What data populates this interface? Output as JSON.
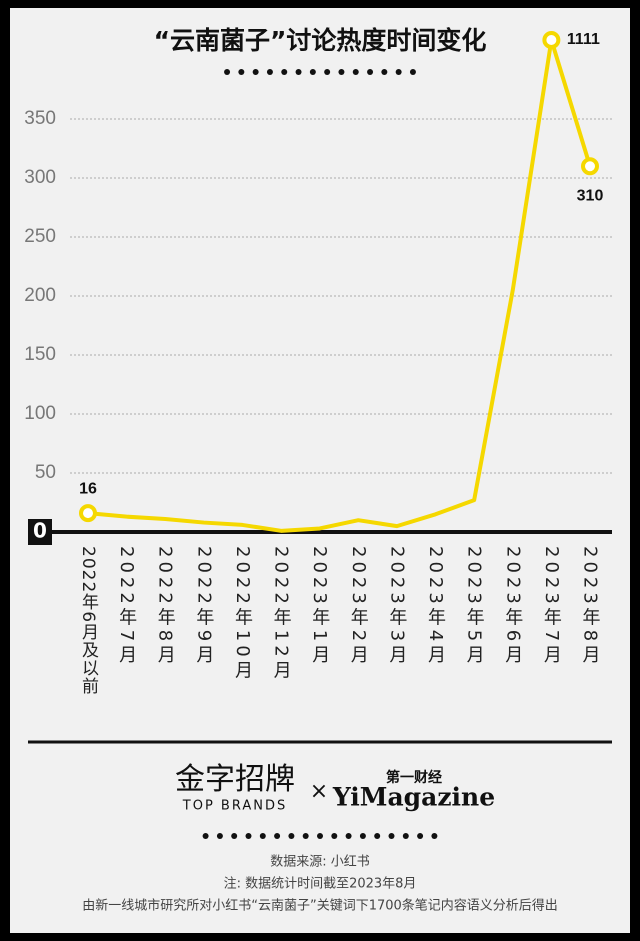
{
  "chart_data": {
    "type": "line",
    "title": "“云南菌子”讨论热度时间变化",
    "categories": [
      "2022年6月及以前",
      "2022年7月",
      "2022年8月",
      "2022年9月",
      "2022年10月",
      "2022年12月",
      "2023年1月",
      "2023年2月",
      "2023年3月",
      "2023年4月",
      "2023年5月",
      "2023年6月",
      "2023年7月",
      "2023年8月"
    ],
    "values": [
      16,
      13,
      11,
      8,
      6,
      1,
      3,
      10,
      5,
      15,
      27,
      205,
      1111,
      310
    ],
    "value_labels": [
      "16",
      null,
      null,
      null,
      null,
      null,
      null,
      null,
      null,
      null,
      null,
      null,
      "1111",
      "310"
    ],
    "color": "#f5d800",
    "ylim": [
      0,
      417
    ],
    "yticks": [
      0,
      50,
      100,
      150,
      200,
      250,
      300,
      350
    ],
    "grid": true,
    "footer": {
      "brand1": "金字招牌",
      "brand1_sub": "TOP BRANDS",
      "times": "×",
      "brand2_top": "第一财经",
      "brand2": "YiMagazine",
      "source": "数据来源: 小红书",
      "note": "注: 数据统计时间截至2023年8月",
      "method": "由新一线城市研究所对小红书“云南菌子”关键词下1700条笔记内容语义分析后得出"
    }
  }
}
